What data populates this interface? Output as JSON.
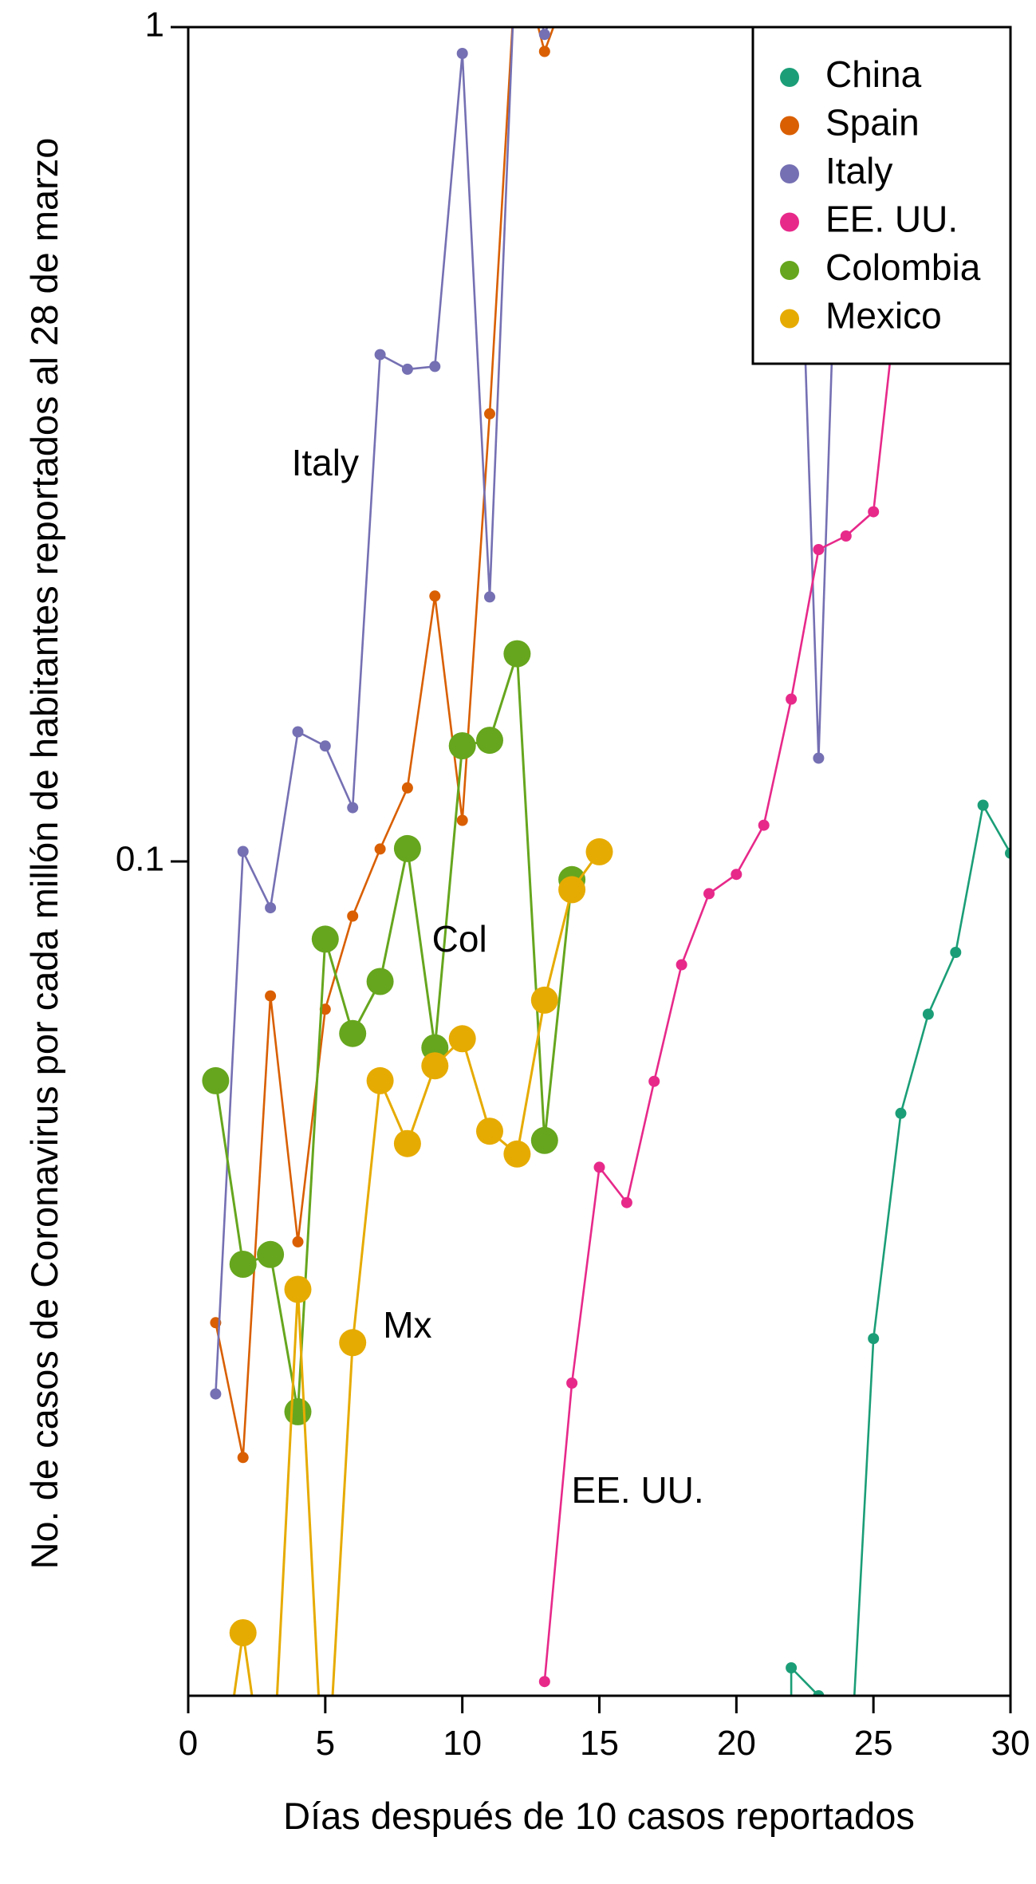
{
  "chart_data": {
    "type": "line",
    "xlabel": "Días después de 10 casos reportados",
    "ylabel": "No. de casos de Coronavirus por cada millón de habitantes reportados al 28 de marzo",
    "xlim": [
      0,
      30
    ],
    "ylim": [
      0.01,
      1
    ],
    "y_scale": "log",
    "x_ticks": [
      0,
      5,
      10,
      15,
      20,
      25,
      30
    ],
    "y_ticks": [
      {
        "value": 0.1,
        "label": "0.1"
      },
      {
        "value": 1,
        "label": "1"
      }
    ],
    "grid": false,
    "legend_position": "top-right",
    "legend": [
      "China",
      "Spain",
      "Italy",
      "EE. UU.",
      "Colombia",
      "Mexico"
    ],
    "series": [
      {
        "name": "China",
        "color": "#1b9e77",
        "marker": "small",
        "x": [
          22,
          22,
          23,
          24,
          25,
          26,
          27,
          28,
          29,
          30
        ],
        "y": [
          0.0065,
          0.0108,
          0.01,
          0.0065,
          0.0268,
          0.0499,
          0.0656,
          0.0778,
          0.1168,
          0.1023
        ]
      },
      {
        "name": "Spain",
        "color": "#d95f02",
        "marker": "small",
        "x": [
          1,
          2,
          3,
          4,
          5,
          6,
          7,
          8,
          9,
          10,
          11,
          12,
          13,
          14
        ],
        "y": [
          0.028,
          0.0193,
          0.069,
          0.035,
          0.0665,
          0.086,
          0.1035,
          0.1225,
          0.208,
          0.112,
          0.344,
          1.25,
          0.935,
          1.15
        ]
      },
      {
        "name": "Italy",
        "color": "#7570b3",
        "marker": "small",
        "x": [
          1,
          2,
          3,
          4,
          5,
          6,
          7,
          8,
          9,
          10,
          11,
          12,
          13,
          14,
          22,
          23,
          24
        ],
        "y": [
          0.023,
          0.1028,
          0.088,
          0.143,
          0.1375,
          0.116,
          0.405,
          0.389,
          0.392,
          0.93,
          0.2075,
          1.35,
          0.98,
          1.2,
          1.3,
          0.133,
          1.3
        ]
      },
      {
        "name": "EE. UU.",
        "color": "#e7298a",
        "marker": "small",
        "x": [
          13,
          14,
          15,
          16,
          17,
          18,
          19,
          20,
          21,
          22,
          23,
          24,
          25,
          26
        ],
        "y": [
          0.0104,
          0.0237,
          0.043,
          0.039,
          0.0545,
          0.0752,
          0.0915,
          0.0965,
          0.1105,
          0.1565,
          0.2365,
          0.2455,
          0.2625,
          0.52
        ]
      },
      {
        "name": "Colombia",
        "color": "#66a61e",
        "marker": "large",
        "x": [
          1,
          2,
          3,
          4,
          5,
          6,
          7,
          8,
          9,
          10,
          11,
          12,
          13,
          14
        ],
        "y": [
          0.0546,
          0.0329,
          0.0338,
          0.0219,
          0.0807,
          0.0622,
          0.0718,
          0.1036,
          0.0598,
          0.1376,
          0.1397,
          0.1774,
          0.0463,
          0.0951
        ]
      },
      {
        "name": "Mexico",
        "color": "#e6ab02",
        "marker": "large",
        "x": [
          1,
          2,
          3,
          4,
          5,
          6,
          7,
          8,
          9,
          10,
          11,
          12,
          13,
          14,
          15
        ],
        "y": [
          0.007,
          0.0119,
          0.007,
          0.0307,
          0.007,
          0.0265,
          0.0546,
          0.0459,
          0.0569,
          0.0613,
          0.0475,
          0.0446,
          0.0682,
          0.0925,
          0.1027
        ]
      }
    ],
    "annotations": [
      {
        "text": "Italy",
        "x": 5.0,
        "y": 0.298
      },
      {
        "text": "Col",
        "x": 9.9,
        "y": 0.0801
      },
      {
        "text": "Mx",
        "x": 8.0,
        "y": 0.0276
      },
      {
        "text": "EE. UU.",
        "x": 16.4,
        "y": 0.0175
      }
    ]
  }
}
